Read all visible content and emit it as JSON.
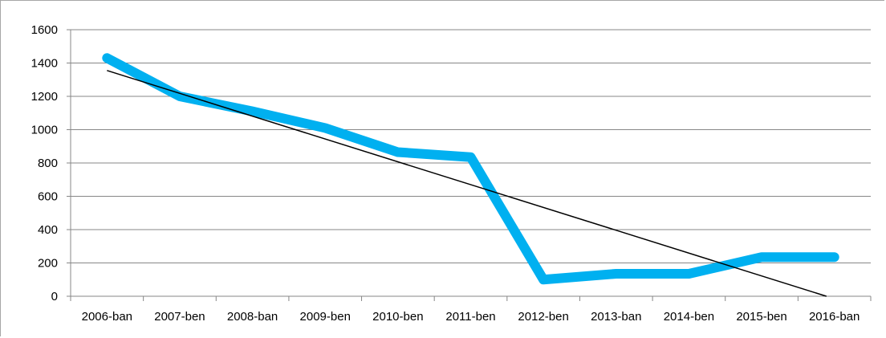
{
  "chart_data": {
    "type": "line",
    "title": "",
    "xlabel": "",
    "ylabel": "",
    "categories": [
      "2006-ban",
      "2007-ben",
      "2008-ban",
      "2009-ben",
      "2010-ben",
      "2011-ben",
      "2012-ben",
      "2013-ban",
      "2014-ben",
      "2015-ben",
      "2016-ban"
    ],
    "yticks": [
      "0",
      "200",
      "400",
      "600",
      "800",
      "1000",
      "1200",
      "1400",
      "1600"
    ],
    "ylim": [
      0,
      1600
    ],
    "grid": true,
    "legend": "none",
    "series": [
      {
        "values": [
          1430,
          1200,
          1110,
          1010,
          865,
          835,
          100,
          135,
          135,
          235,
          235
        ],
        "color": "#00b0f0"
      }
    ],
    "trendline": {
      "kind": "linear",
      "start_value": 1355,
      "end_value": -15,
      "color": "#000000"
    }
  }
}
